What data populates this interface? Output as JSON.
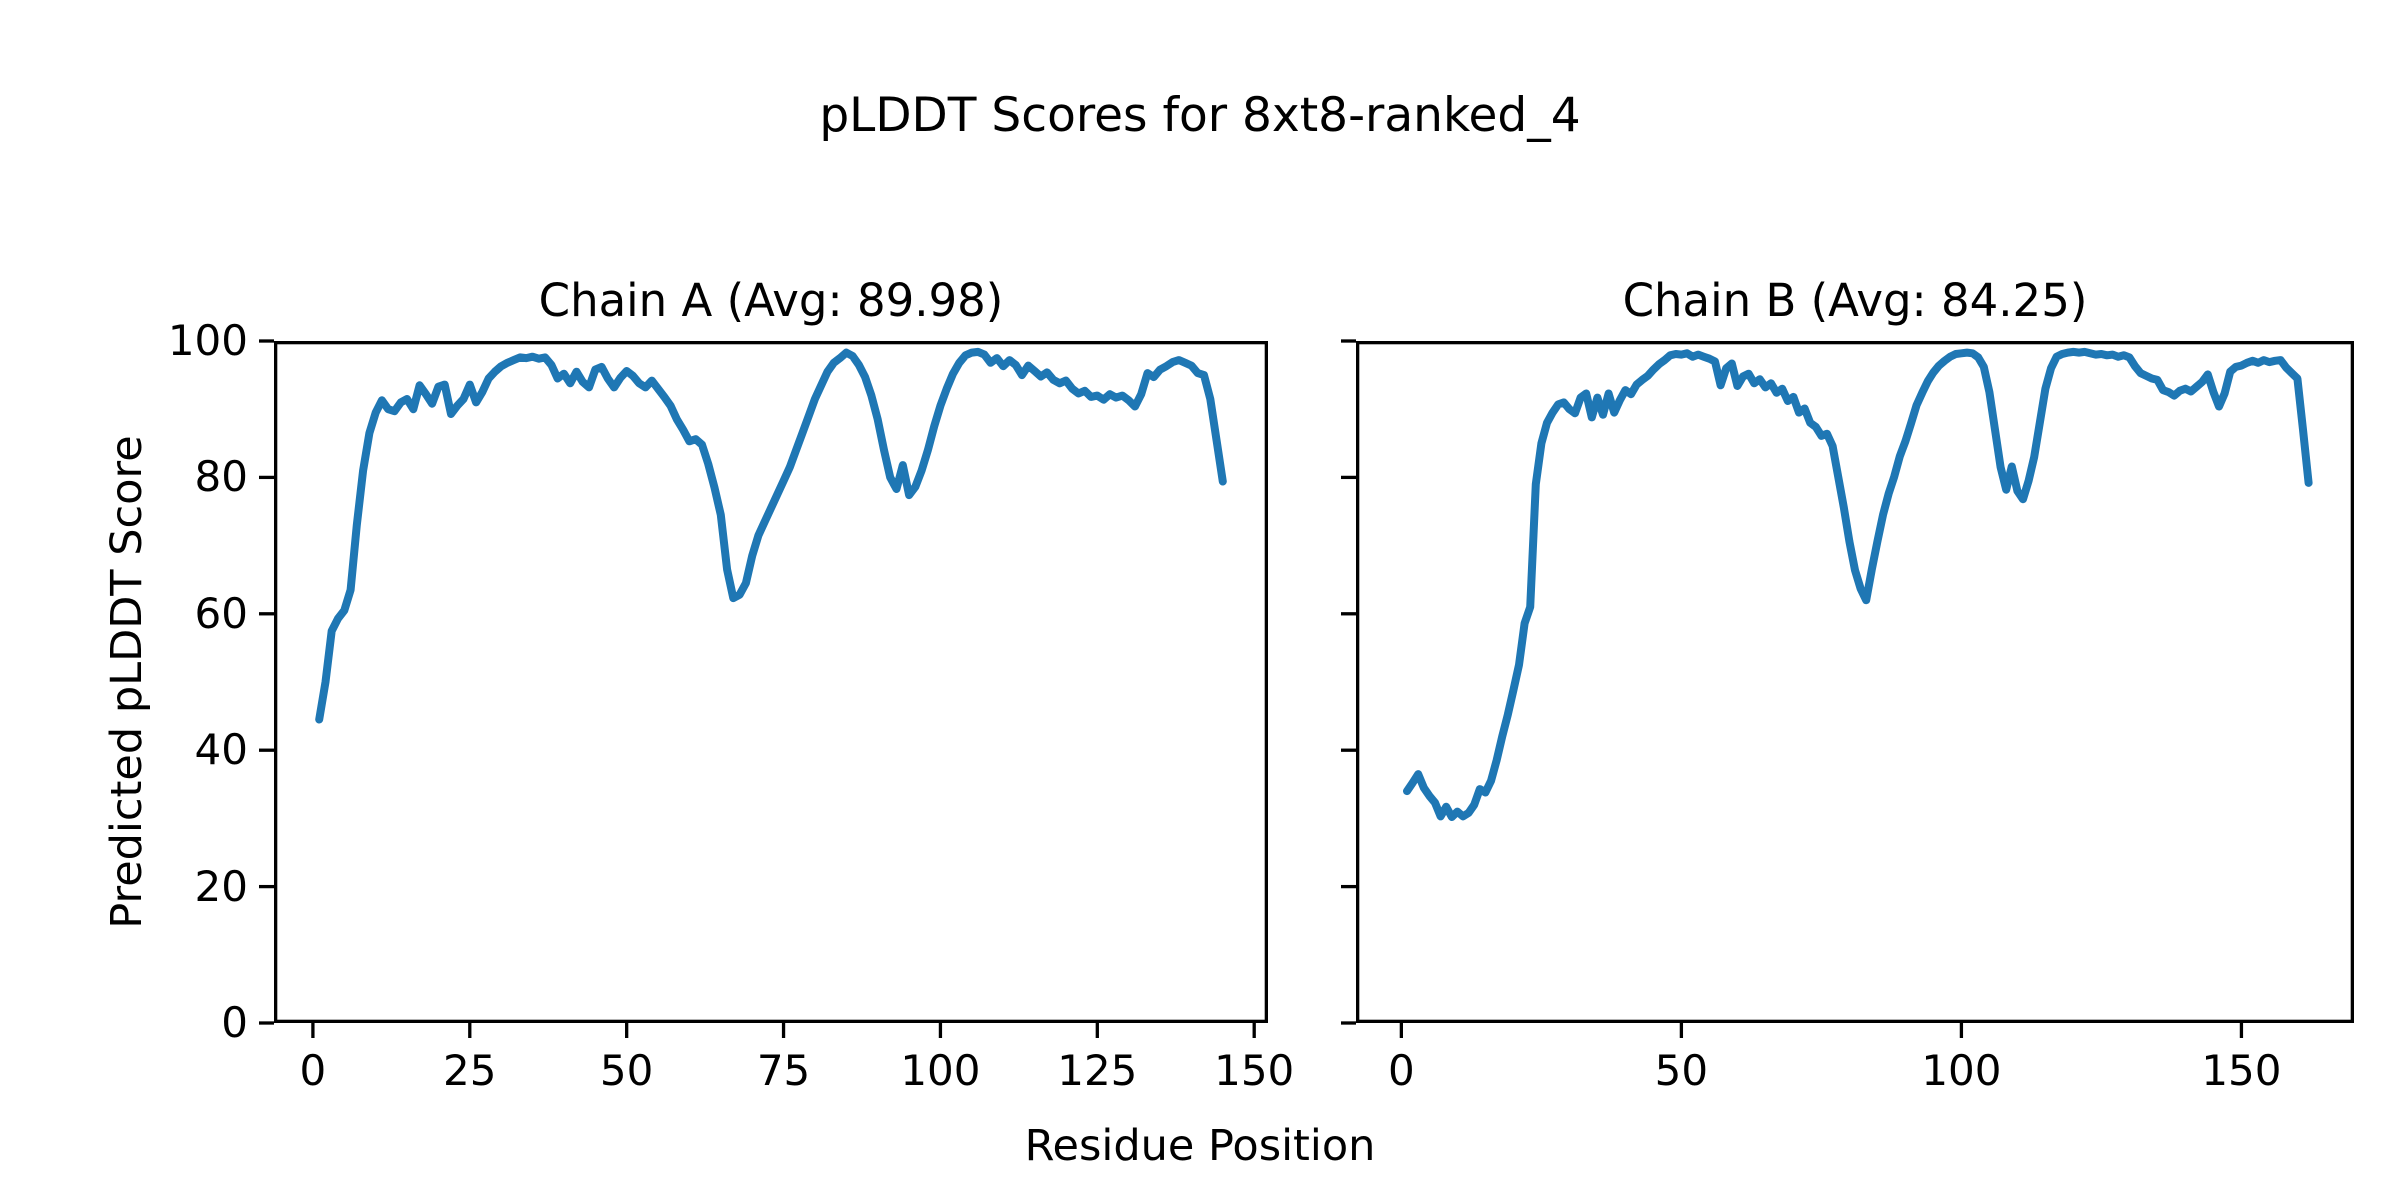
{
  "figure": {
    "suptitle": "pLDDT Scores for 8xt8-ranked_4",
    "xlabel": "Residue Position",
    "ylabel": "Predicted pLDDT Score",
    "line_color": "#1f77b4",
    "spine_color": "#000000",
    "text_color": "#000000",
    "background": "#ffffff"
  },
  "chart_data": [
    {
      "type": "line",
      "title": "Chain A (Avg: 89.98)",
      "chain": "A",
      "average_plddt": 89.98,
      "xlim": [
        -6.2,
        152.2
      ],
      "ylim": [
        0,
        100
      ],
      "xticks": [
        0,
        25,
        50,
        75,
        100,
        125,
        150
      ],
      "yticks": [
        0,
        20,
        40,
        60,
        80,
        100
      ],
      "show_ytick_labels": true,
      "grid": false,
      "x_start": 1,
      "x_step": 1,
      "y": [
        44.5,
        50,
        57.5,
        59.3,
        60.5,
        63.5,
        73,
        81,
        86.5,
        89.5,
        91.3,
        90,
        89.7,
        91,
        91.5,
        90,
        93.5,
        92.2,
        90.8,
        93.3,
        93.6,
        89.3,
        90.5,
        91.5,
        93.6,
        91,
        92.5,
        94.5,
        95.5,
        96.3,
        96.8,
        97.2,
        97.6,
        97.5,
        97.7,
        97.4,
        97.6,
        96.5,
        94.5,
        95.2,
        93.8,
        95.5,
        94,
        93.2,
        95.8,
        96.2,
        94.5,
        93.2,
        94.6,
        95.6,
        94.9,
        93.8,
        93.2,
        94.2,
        93,
        91.8,
        90.5,
        88.5,
        87,
        85.3,
        85.6,
        84.8,
        82,
        78.5,
        74.5,
        66.5,
        62.3,
        62.8,
        64.5,
        68.5,
        71.5,
        73.5,
        75.5,
        77.5,
        79.5,
        81.5,
        84,
        86.5,
        89,
        91.5,
        93.5,
        95.5,
        96.8,
        97.5,
        98.3,
        97.8,
        96.5,
        94.7,
        92,
        88.5,
        84,
        80,
        78.3,
        81.8,
        77.4,
        78.6,
        81,
        84,
        87.5,
        90.5,
        93,
        95.2,
        96.8,
        97.9,
        98.3,
        98.4,
        98,
        96.8,
        97.5,
        96.3,
        97.2,
        96.5,
        95,
        96.4,
        95.6,
        94.8,
        95.4,
        94.3,
        93.8,
        94.2,
        93,
        92.3,
        92.7,
        91.8,
        92,
        91.4,
        92.2,
        91.7,
        92,
        91.3,
        90.4,
        92.2,
        95.3,
        94.7,
        95.8,
        96.3,
        96.9,
        97.2,
        96.8,
        96.4,
        95.3,
        95,
        91.5,
        85.5,
        79.4
      ]
    },
    {
      "type": "line",
      "title": "Chain B (Avg: 84.25)",
      "chain": "B",
      "average_plddt": 84.25,
      "xlim": [
        -8.1,
        170.1
      ],
      "ylim": [
        0,
        100
      ],
      "xticks": [
        0,
        50,
        100,
        150
      ],
      "yticks": [
        0,
        20,
        40,
        60,
        80,
        100
      ],
      "show_ytick_labels": false,
      "grid": false,
      "x_start": 1,
      "x_step": 1,
      "y": [
        34,
        35.2,
        36.5,
        34.5,
        33.3,
        32.3,
        30.3,
        31.7,
        30.2,
        31,
        30.3,
        30.8,
        32,
        34.3,
        33.8,
        35.5,
        38.5,
        42,
        45.2,
        48.8,
        52.5,
        58.6,
        61,
        79,
        85,
        88,
        89.5,
        90.7,
        91,
        90,
        89.4,
        91.7,
        92.3,
        88.8,
        91.7,
        89.2,
        92.3,
        89.5,
        91.3,
        92.8,
        92.2,
        93.6,
        94.3,
        94.9,
        95.8,
        96.6,
        97.2,
        97.9,
        98.1,
        98,
        98.2,
        97.7,
        98,
        97.7,
        97.4,
        97,
        93.5,
        96,
        96.7,
        93.4,
        94.8,
        95.2,
        93.8,
        94.4,
        93.2,
        93.8,
        92.4,
        93,
        91.2,
        91.8,
        89.5,
        90.1,
        88,
        87.4,
        86.1,
        86.4,
        84.6,
        80.1,
        75.6,
        70.6,
        66.4,
        63.7,
        62,
        66.5,
        70.6,
        74.5,
        77.6,
        80.1,
        83.1,
        85.3,
        87.9,
        90.6,
        92.4,
        94.1,
        95.4,
        96.4,
        97.1,
        97.7,
        98.1,
        98.2,
        98.3,
        98.2,
        97.6,
        96.2,
        92.5,
        87,
        81.5,
        78.2,
        81.6,
        78,
        76.8,
        79.5,
        83,
        88,
        93,
        96,
        97.7,
        98.1,
        98.3,
        98.4,
        98.3,
        98.4,
        98.2,
        98,
        98.1,
        97.9,
        98,
        97.7,
        97.9,
        97.6,
        96.3,
        95.3,
        94.9,
        94.5,
        94.3,
        92.8,
        92.5,
        92,
        92.7,
        93,
        92.6,
        93.3,
        94,
        95.1,
        92.5,
        90.4,
        92.3,
        95.5,
        96.2,
        96.4,
        96.8,
        97.1,
        96.8,
        97.2,
        96.9,
        97.1,
        97.2,
        96.1,
        95.3,
        94.5,
        87,
        79.2
      ]
    }
  ]
}
